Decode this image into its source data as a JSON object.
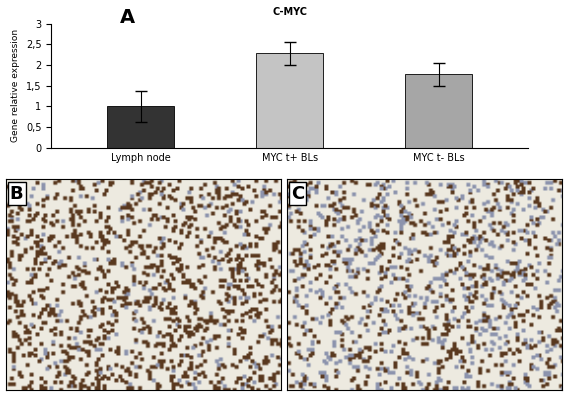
{
  "chart_data": {
    "type": "bar",
    "title": "C-MYC",
    "categories": [
      "Lymph node",
      "MYC t+ BLs",
      "MYC t- BLs"
    ],
    "values": [
      1.0,
      2.28,
      1.78
    ],
    "errors": [
      0.38,
      0.28,
      0.28
    ],
    "colors": [
      "#333333",
      "#c4c4c4",
      "#a6a6a6"
    ],
    "y_label": "Gene relative expression",
    "ylim": [
      0,
      3
    ],
    "yticks": [
      0,
      {
        "value": 0.5,
        "label": "0,5"
      },
      1,
      {
        "value": 1.5,
        "label": "1,5"
      },
      2,
      {
        "value": 2.5,
        "label": "2,5"
      },
      3
    ],
    "grid": false,
    "annotations": [
      "A"
    ]
  },
  "images": [
    {
      "label": "B"
    },
    {
      "label": "C"
    }
  ]
}
